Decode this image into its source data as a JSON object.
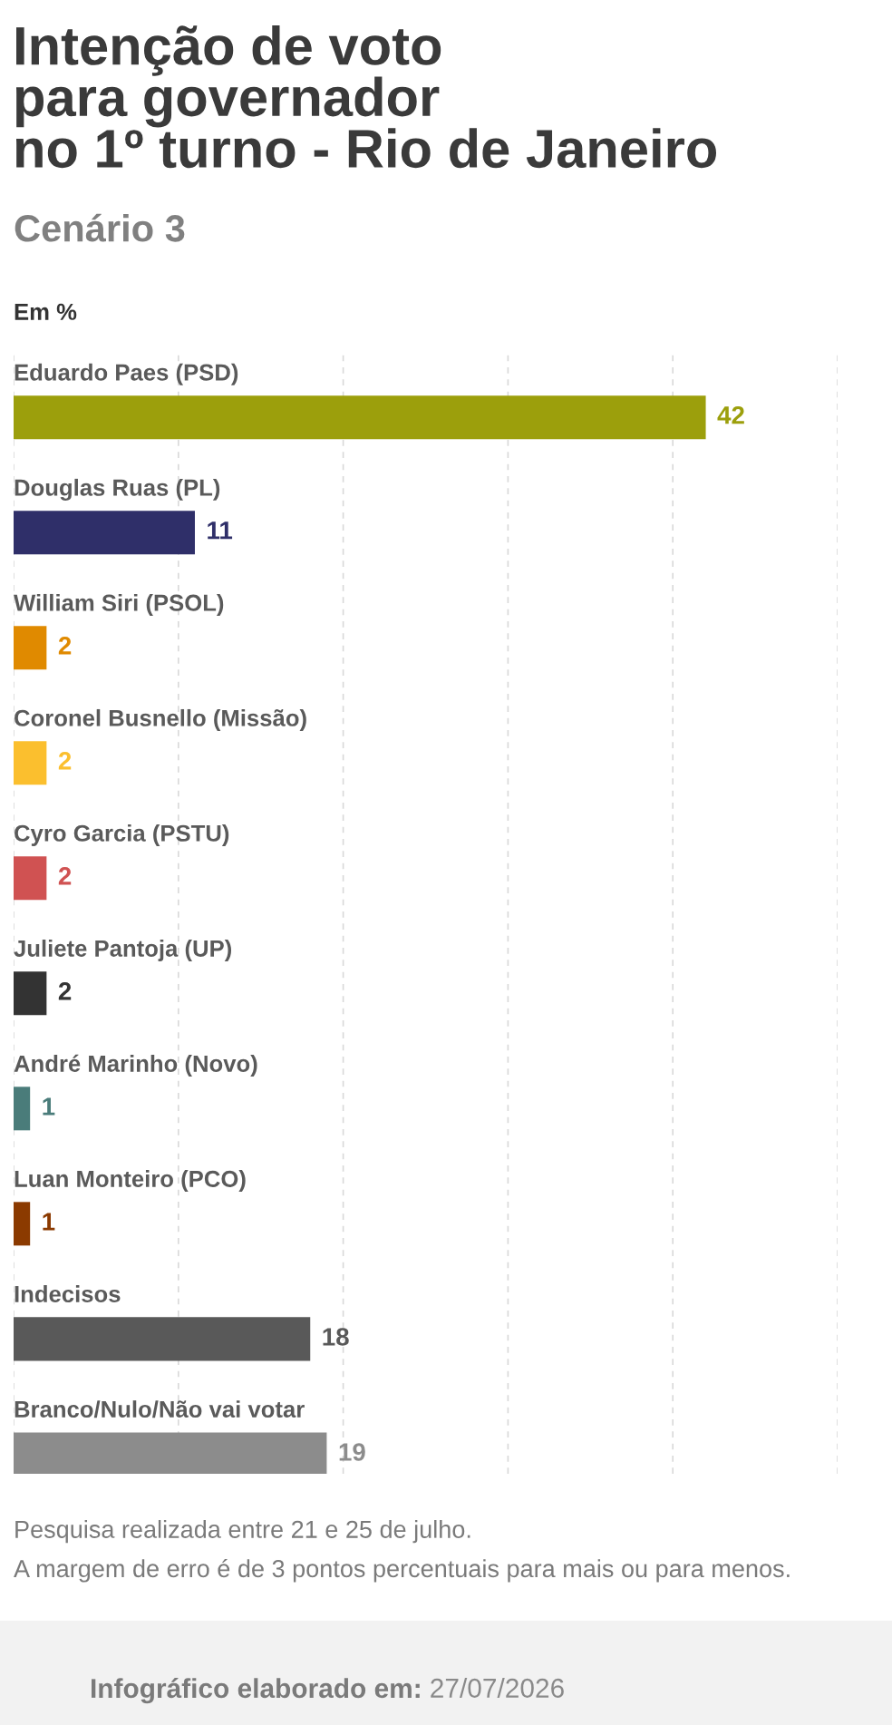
{
  "chart_data": {
    "type": "bar",
    "orientation": "horizontal",
    "title": "Intenção de voto\npara governador\nno 1º turno - Rio de Janeiro",
    "subtitle": "Cenário 3",
    "xlabel": "Em %",
    "categories": [
      "Eduardo Paes (PSD)",
      "Douglas Ruas (PL)",
      "William Siri (PSOL)",
      "Coronel Busnello (Missão)",
      "Cyro Garcia (PSTU)",
      "Juliete Pantoja (UP)",
      "André Marinho (Novo)",
      "Luan Monteiro (PCO)",
      "Indecisos",
      "Branco/Nulo/Não vai votar"
    ],
    "values": [
      42,
      11,
      2,
      2,
      2,
      2,
      1,
      1,
      18,
      19
    ],
    "colors": [
      "#9c9f0c",
      "#2f2f69",
      "#e08a00",
      "#fbbf2e",
      "#d05252",
      "#333333",
      "#4a7c7a",
      "#8b3a00",
      "#595959",
      "#8c8c8c"
    ],
    "xlim": [
      0,
      50
    ],
    "xticks": [
      {
        "value": 0,
        "label": null
      },
      {
        "value": 10,
        "label": null
      },
      {
        "value": 20,
        "label": null
      },
      {
        "value": 30,
        "label": null
      },
      {
        "value": 40,
        "label": null
      },
      {
        "value": 50,
        "label": null
      }
    ],
    "grid": "x",
    "tick_labels": "y",
    "data_labels": true,
    "annotations": [
      "Pesquisa realizada entre 21 e 25 de julho.",
      "A margem de erro é de 3 pontos percentuais para mais ou para menos.",
      "Infográfico elaborado em:",
      "27/07/2026"
    ]
  }
}
